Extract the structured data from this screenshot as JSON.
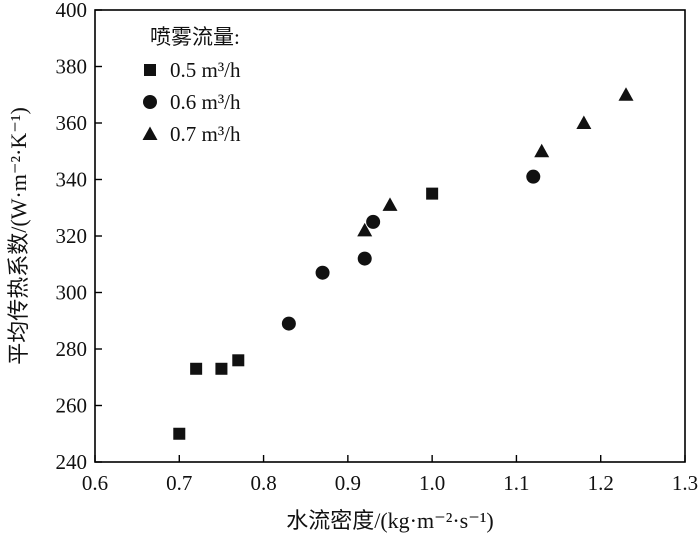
{
  "chart_data": {
    "type": "scatter",
    "title": "",
    "xlabel": "水流密度/(kg·m⁻²·s⁻¹)",
    "ylabel": "平均传热系数/(W·m⁻²·K⁻¹)",
    "xlim": [
      0.6,
      1.3
    ],
    "ylim": [
      240,
      400
    ],
    "xticks": [
      "0.6",
      "0.7",
      "0.8",
      "0.9",
      "1.0",
      "1.1",
      "1.2",
      "1.3"
    ],
    "yticks": [
      "240",
      "260",
      "280",
      "300",
      "320",
      "340",
      "360",
      "380",
      "400"
    ],
    "legend": {
      "title": "喷雾流量:",
      "placement": "top-left"
    },
    "series": [
      {
        "name": "0.5 m³/h",
        "marker": "square",
        "points": [
          {
            "x": 0.7,
            "y": 250
          },
          {
            "x": 0.72,
            "y": 273
          },
          {
            "x": 0.75,
            "y": 273
          },
          {
            "x": 0.77,
            "y": 276
          },
          {
            "x": 1.0,
            "y": 335
          }
        ]
      },
      {
        "name": "0.6 m³/h",
        "marker": "circle",
        "points": [
          {
            "x": 0.83,
            "y": 289
          },
          {
            "x": 0.87,
            "y": 307
          },
          {
            "x": 0.92,
            "y": 312
          },
          {
            "x": 0.93,
            "y": 325
          },
          {
            "x": 1.12,
            "y": 341
          }
        ]
      },
      {
        "name": "0.7 m³/h",
        "marker": "triangle",
        "points": [
          {
            "x": 0.92,
            "y": 322
          },
          {
            "x": 0.95,
            "y": 331
          },
          {
            "x": 1.13,
            "y": 350
          },
          {
            "x": 1.18,
            "y": 360
          },
          {
            "x": 1.23,
            "y": 370
          }
        ]
      }
    ]
  }
}
